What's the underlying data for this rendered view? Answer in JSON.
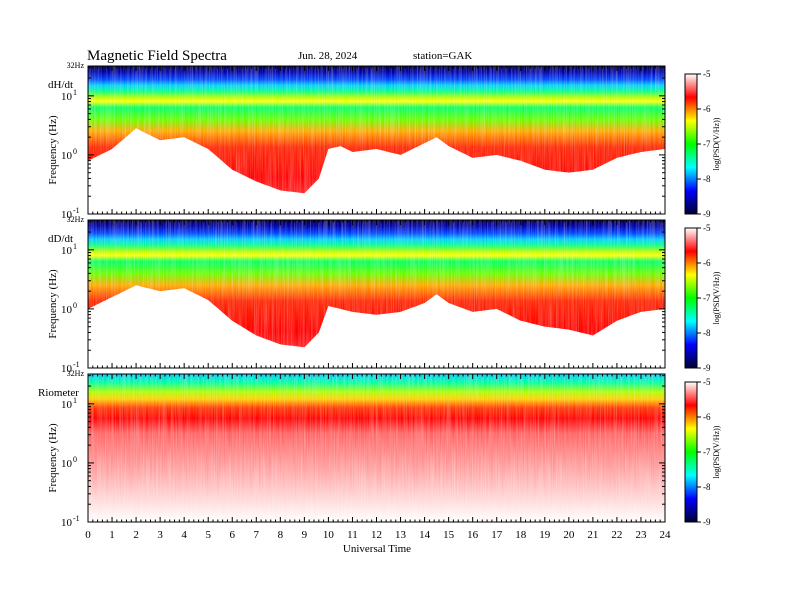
{
  "header": {
    "title": "Magnetic  Field  Spectra",
    "date": "Jun. 28, 2024",
    "station": "station=GAK"
  },
  "chart_data": {
    "type": "heatmap",
    "xlabel": "Universal Time",
    "x_ticks": [
      "0",
      "1",
      "2",
      "3",
      "4",
      "5",
      "6",
      "7",
      "8",
      "9",
      "10",
      "11",
      "12",
      "13",
      "14",
      "15",
      "16",
      "17",
      "18",
      "19",
      "20",
      "21",
      "22",
      "23",
      "24"
    ],
    "xlim": [
      0,
      24
    ],
    "y_scale": "log",
    "ylim_hz": [
      0.1,
      32
    ],
    "y_tick_labels": {
      "top": "32Hz",
      "t10": "10",
      "t10_exp": "1",
      "t1": "10",
      "t1_exp": "0",
      "t01": "10",
      "t01_exp": "-1"
    },
    "colorbar": {
      "label": "log(PSD(V/Hz))",
      "range": [
        -9,
        -5
      ],
      "ticks": [
        "-5",
        "-6",
        "-7",
        "-8",
        "-9"
      ],
      "colors": [
        "#ffffff",
        "#ff0000",
        "#ffff00",
        "#00ff00",
        "#00ffff",
        "#0000ff",
        "#000033"
      ]
    },
    "panels": [
      {
        "name": "dH/dt",
        "ylabel": "Frequency (Hz)",
        "floor_log_freq_by_hour": [
          [
            0,
            -0.1
          ],
          [
            1,
            0.1
          ],
          [
            2,
            0.45
          ],
          [
            3,
            0.25
          ],
          [
            4,
            0.3
          ],
          [
            5,
            0.1
          ],
          [
            6,
            -0.25
          ],
          [
            7,
            -0.45
          ],
          [
            8,
            -0.6
          ],
          [
            9,
            -0.65
          ],
          [
            9.6,
            -0.4
          ],
          [
            10,
            0.1
          ],
          [
            10.5,
            0.15
          ],
          [
            11,
            0.05
          ],
          [
            12,
            0.1
          ],
          [
            13,
            0.0
          ],
          [
            14,
            0.2
          ],
          [
            14.5,
            0.3
          ],
          [
            15,
            0.15
          ],
          [
            16,
            -0.05
          ],
          [
            17,
            0.0
          ],
          [
            18,
            -0.1
          ],
          [
            19,
            -0.25
          ],
          [
            20,
            -0.3
          ],
          [
            21,
            -0.25
          ],
          [
            22,
            -0.05
          ],
          [
            23,
            0.05
          ],
          [
            24,
            0.1
          ]
        ]
      },
      {
        "name": "dD/dt",
        "ylabel": "Frequency (Hz)",
        "floor_log_freq_by_hour": [
          [
            0,
            0.0
          ],
          [
            1,
            0.2
          ],
          [
            2,
            0.4
          ],
          [
            3,
            0.3
          ],
          [
            4,
            0.35
          ],
          [
            5,
            0.15
          ],
          [
            6,
            -0.2
          ],
          [
            7,
            -0.45
          ],
          [
            8,
            -0.6
          ],
          [
            9,
            -0.65
          ],
          [
            9.6,
            -0.4
          ],
          [
            10,
            0.05
          ],
          [
            10.5,
            0.0
          ],
          [
            11,
            -0.05
          ],
          [
            12,
            -0.1
          ],
          [
            13,
            -0.05
          ],
          [
            14,
            0.1
          ],
          [
            14.5,
            0.25
          ],
          [
            15,
            0.1
          ],
          [
            16,
            -0.05
          ],
          [
            17,
            0.0
          ],
          [
            18,
            -0.2
          ],
          [
            19,
            -0.3
          ],
          [
            20,
            -0.35
          ],
          [
            21,
            -0.45
          ],
          [
            22,
            -0.2
          ],
          [
            23,
            -0.05
          ],
          [
            24,
            0.0
          ]
        ]
      },
      {
        "name": "Riometer",
        "ylabel": "Frequency (Hz)",
        "floor_log_freq_by_hour": [
          [
            0,
            0.85
          ],
          [
            24,
            0.85
          ]
        ]
      }
    ]
  }
}
